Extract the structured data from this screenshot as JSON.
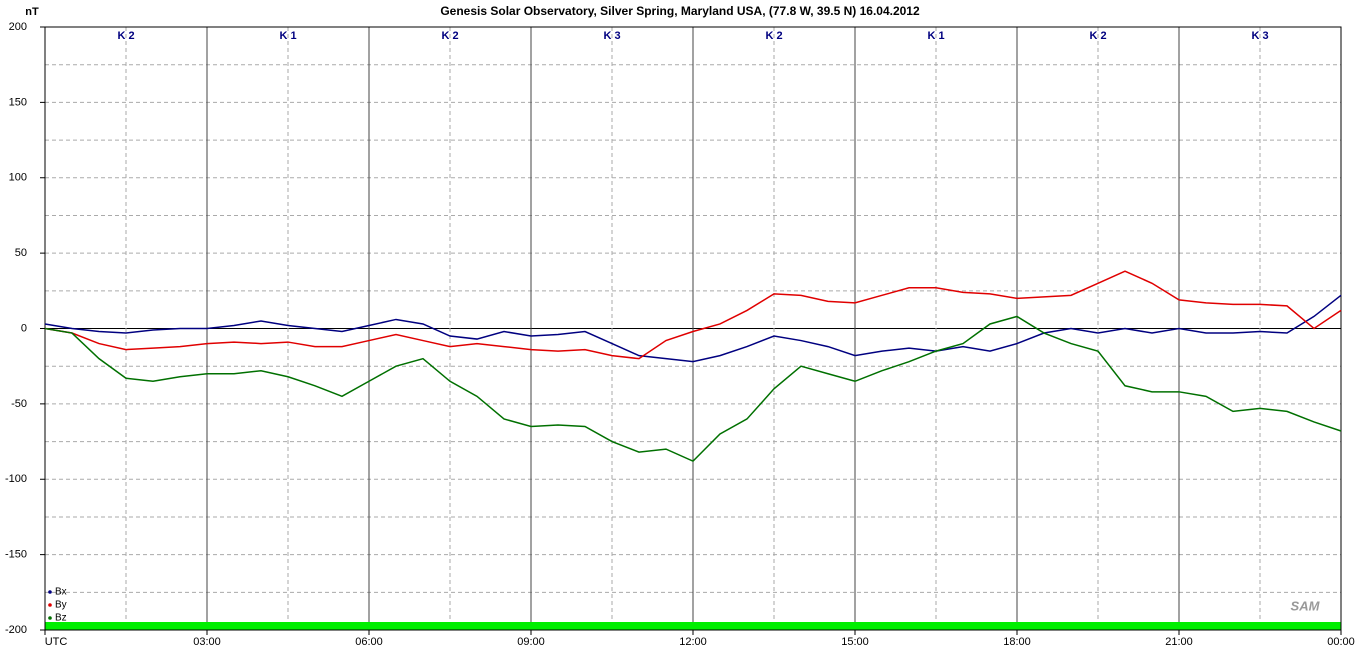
{
  "chart_data": {
    "type": "line",
    "title": "Genesis Solar Observatory, Silver Spring, Maryland USA, (77.8 W, 39.5 N)  16.04.2012",
    "y_label": "nT",
    "logo": "SAM",
    "k_indices": [
      "K 2",
      "K 1",
      "K 2",
      "K 3",
      "K 2",
      "K 1",
      "K 2",
      "K 3"
    ],
    "x": [
      0,
      0.5,
      1,
      1.5,
      2,
      2.5,
      3,
      3.5,
      4,
      4.5,
      5,
      5.5,
      6,
      6.5,
      7,
      7.5,
      8,
      8.5,
      9,
      9.5,
      10,
      10.5,
      11,
      11.5,
      12,
      12.5,
      13,
      13.5,
      14,
      14.5,
      15,
      15.5,
      16,
      16.5,
      17,
      17.5,
      18,
      18.5,
      19,
      19.5,
      20,
      20.5,
      21,
      21.5,
      22,
      22.5,
      23,
      23.5,
      24
    ],
    "xlim": [
      0,
      24
    ],
    "xticks": [
      {
        "value": 0,
        "label": "UTC"
      },
      {
        "value": 3,
        "label": "03:00"
      },
      {
        "value": 6,
        "label": "06:00"
      },
      {
        "value": 9,
        "label": "09:00"
      },
      {
        "value": 12,
        "label": "12:00"
      },
      {
        "value": 15,
        "label": "15:00"
      },
      {
        "value": 18,
        "label": "18:00"
      },
      {
        "value": 21,
        "label": "21:00"
      },
      {
        "value": 24,
        "label": "00:00"
      }
    ],
    "ylim": [
      -200,
      200
    ],
    "yticks": [
      -200,
      -150,
      -100,
      -50,
      0,
      50,
      100,
      150,
      200
    ],
    "grid": true,
    "legend": "lower left",
    "series": [
      {
        "name": "Bx",
        "color": "#000080",
        "values": [
          3,
          0,
          -2,
          -3,
          -1,
          0,
          0,
          2,
          5,
          2,
          0,
          -2,
          2,
          6,
          3,
          -5,
          -7,
          -2,
          -5,
          -4,
          -2,
          -10,
          -18,
          -20,
          -22,
          -18,
          -12,
          -5,
          -8,
          -12,
          -18,
          -15,
          -13,
          -15,
          -12,
          -15,
          -10,
          -3,
          0,
          -3,
          0,
          -3,
          0,
          -3,
          -3,
          -2,
          -3,
          8,
          22
        ]
      },
      {
        "name": "By",
        "color": "#e00000",
        "values": [
          0,
          -3,
          -10,
          -14,
          -13,
          -12,
          -10,
          -9,
          -10,
          -9,
          -12,
          -12,
          -8,
          -4,
          -8,
          -12,
          -10,
          -12,
          -14,
          -15,
          -14,
          -18,
          -20,
          -8,
          -2,
          3,
          12,
          23,
          22,
          18,
          17,
          22,
          27,
          27,
          24,
          23,
          20,
          21,
          22,
          30,
          38,
          30,
          19,
          17,
          16,
          16,
          15,
          0,
          12
        ]
      },
      {
        "name": "Bz",
        "color": "#007000",
        "values": [
          0,
          -3,
          -20,
          -33,
          -35,
          -32,
          -30,
          -30,
          -28,
          -32,
          -38,
          -45,
          -35,
          -25,
          -20,
          -35,
          -45,
          -60,
          -65,
          -64,
          -65,
          -75,
          -82,
          -80,
          -88,
          -70,
          -60,
          -40,
          -25,
          -30,
          -35,
          -28,
          -22,
          -15,
          -10,
          3,
          8,
          -3,
          -10,
          -15,
          -38,
          -42,
          -42,
          -45,
          -55,
          -53,
          -55,
          -62,
          -68
        ]
      }
    ]
  }
}
